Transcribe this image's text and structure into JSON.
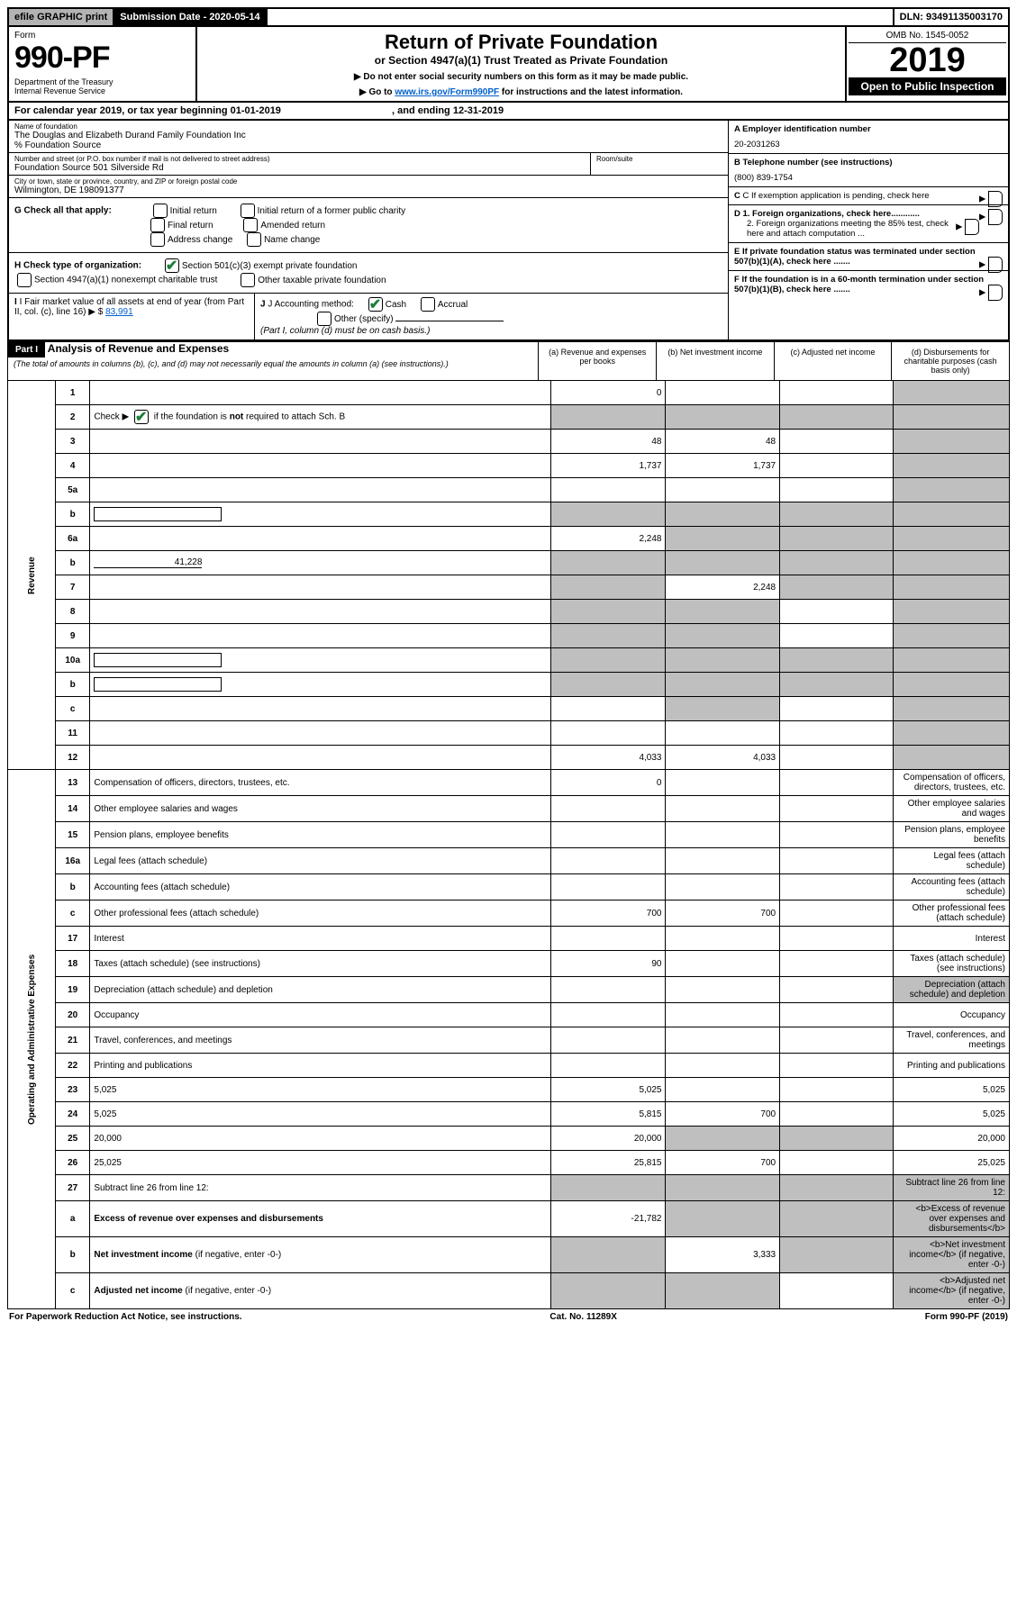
{
  "top": {
    "efile": "efile GRAPHIC print",
    "subdate_label": "Submission Date - 2020-05-14",
    "dln": "DLN: 93491135003170"
  },
  "header": {
    "form_word": "Form",
    "form_num": "990-PF",
    "dept": "Department of the Treasury\nInternal Revenue Service",
    "title": "Return of Private Foundation",
    "subtitle": "or Section 4947(a)(1) Trust Treated as Private Foundation",
    "instr1": "▶ Do not enter social security numbers on this form as it may be made public.",
    "instr2_pre": "▶ Go to ",
    "instr2_link": "www.irs.gov/Form990PF",
    "instr2_post": " for instructions and the latest information.",
    "omb": "OMB No. 1545-0052",
    "year": "2019",
    "otp": "Open to Public Inspection"
  },
  "cal": {
    "text_pre": "For calendar year 2019, or tax year beginning ",
    "begin": "01-01-2019",
    "mid": " , and ending ",
    "end": "12-31-2019"
  },
  "info": {
    "name_lbl": "Name of foundation",
    "name": "The Douglas and Elizabeth Durand Family Foundation Inc\n% Foundation Source",
    "addr_lbl": "Number and street (or P.O. box number if mail is not delivered to street address)",
    "addr": "Foundation Source 501 Silverside Rd",
    "room_lbl": "Room/suite",
    "city_lbl": "City or town, state or province, country, and ZIP or foreign postal code",
    "city": "Wilmington, DE  198091377",
    "a_lbl": "A Employer identification number",
    "a_val": "20-2031263",
    "b_lbl": "B Telephone number (see instructions)",
    "b_val": "(800) 839-1754",
    "c_lbl": "C If exemption application is pending, check here",
    "d1": "D 1. Foreign organizations, check here............",
    "d2": "2. Foreign organizations meeting the 85% test, check here and attach computation ...",
    "e": "E  If private foundation status was terminated under section 507(b)(1)(A), check here .......",
    "f": "F  If the foundation is in a 60-month termination under section 507(b)(1)(B), check here .......",
    "g_lbl": "G Check all that apply:",
    "g_opts": [
      "Initial return",
      "Initial return of a former public charity",
      "Final return",
      "Amended return",
      "Address change",
      "Name change"
    ],
    "h_lbl": "H Check type of organization:",
    "h_opts": [
      "Section 501(c)(3) exempt private foundation",
      "Section 4947(a)(1) nonexempt charitable trust",
      "Other taxable private foundation"
    ],
    "i_lbl": "I Fair market value of all assets at end of year (from Part II, col. (c), line 16) ▶ $",
    "i_val": "83,991",
    "j_lbl": "J Accounting method:",
    "j_opts": [
      "Cash",
      "Accrual"
    ],
    "j_other": "Other (specify)",
    "j_note": "(Part I, column (d) must be on cash basis.)"
  },
  "part1": {
    "label": "Part I",
    "title": "Analysis of Revenue and Expenses",
    "note": "(The total of amounts in columns (b), (c), and (d) may not necessarily equal the amounts in column (a) (see instructions).)",
    "cols": {
      "a": "(a) Revenue and expenses per books",
      "b": "(b) Net investment income",
      "c": "(c) Adjusted net income",
      "d": "(d) Disbursements for charitable purposes (cash basis only)"
    }
  },
  "sections": {
    "revenue": "Revenue",
    "expenses": "Operating and Administrative Expenses"
  },
  "rows": [
    {
      "n": "1",
      "d": "",
      "a": "0",
      "b": "",
      "c": "",
      "dgrey": true
    },
    {
      "n": "2",
      "d": "",
      "hasCheck": true,
      "a": "",
      "b": "",
      "c": "",
      "allgrey": true
    },
    {
      "n": "3",
      "d": "",
      "a": "48",
      "b": "48",
      "c": "",
      "dgrey": true
    },
    {
      "n": "4",
      "d": "",
      "a": "1,737",
      "b": "1,737",
      "c": "",
      "dgrey": true
    },
    {
      "n": "5a",
      "d": "",
      "a": "",
      "b": "",
      "c": "",
      "dgrey": true
    },
    {
      "n": "b",
      "d": "",
      "a": "",
      "b": "",
      "c": "",
      "allgrey": true,
      "inline": true
    },
    {
      "n": "6a",
      "d": "",
      "a": "2,248",
      "b": "",
      "c": "",
      "bgrey": true,
      "cgrey": true,
      "dgrey": true
    },
    {
      "n": "b",
      "d": "",
      "extra": "41,228",
      "a": "",
      "b": "",
      "c": "",
      "allgrey": true
    },
    {
      "n": "7",
      "d": "",
      "a": "",
      "b": "2,248",
      "c": "",
      "agrey": true,
      "cgrey": true,
      "dgrey": true
    },
    {
      "n": "8",
      "d": "",
      "a": "",
      "b": "",
      "c": "",
      "agrey": true,
      "bgrey": true,
      "dgrey": true
    },
    {
      "n": "9",
      "d": "",
      "a": "",
      "b": "",
      "c": "",
      "agrey": true,
      "bgrey": true,
      "dgrey": true
    },
    {
      "n": "10a",
      "d": "",
      "a": "",
      "b": "",
      "c": "",
      "allgrey": true,
      "inline": true
    },
    {
      "n": "b",
      "d": "",
      "a": "",
      "b": "",
      "c": "",
      "allgrey": true,
      "inline": true
    },
    {
      "n": "c",
      "d": "",
      "a": "",
      "b": "",
      "c": "",
      "bgrey": true,
      "dgrey": true
    },
    {
      "n": "11",
      "d": "",
      "a": "",
      "b": "",
      "c": "",
      "dgrey": true
    },
    {
      "n": "12",
      "d": "",
      "a": "4,033",
      "b": "4,033",
      "c": "",
      "dgrey": true
    }
  ],
  "exp_rows": [
    {
      "n": "13",
      "d": "Compensation of officers, directors, trustees, etc.",
      "a": "0"
    },
    {
      "n": "14",
      "d": "Other employee salaries and wages"
    },
    {
      "n": "15",
      "d": "Pension plans, employee benefits"
    },
    {
      "n": "16a",
      "d": "Legal fees (attach schedule)"
    },
    {
      "n": "b",
      "d": "Accounting fees (attach schedule)"
    },
    {
      "n": "c",
      "d": "Other professional fees (attach schedule)",
      "a": "700",
      "b": "700"
    },
    {
      "n": "17",
      "d": "Interest"
    },
    {
      "n": "18",
      "d": "Taxes (attach schedule) (see instructions)",
      "a": "90"
    },
    {
      "n": "19",
      "d": "Depreciation (attach schedule) and depletion",
      "dgrey": true
    },
    {
      "n": "20",
      "d": "Occupancy"
    },
    {
      "n": "21",
      "d": "Travel, conferences, and meetings"
    },
    {
      "n": "22",
      "d": "Printing and publications"
    },
    {
      "n": "23",
      "d": "5,025",
      "a": "5,025"
    },
    {
      "n": "24",
      "d": "5,025",
      "a": "5,815",
      "b": "700"
    },
    {
      "n": "25",
      "d": "20,000",
      "a": "20,000",
      "bgrey": true,
      "cgrey": true
    },
    {
      "n": "26",
      "d": "25,025",
      "a": "25,815",
      "b": "700"
    },
    {
      "n": "27",
      "d": "Subtract line 26 from line 12:",
      "allgrey": true
    },
    {
      "n": "a",
      "d": "<b>Excess of revenue over expenses and disbursements</b>",
      "a": "-21,782",
      "bgrey": true,
      "cgrey": true,
      "dgrey": true
    },
    {
      "n": "b",
      "d": "<b>Net investment income</b> (if negative, enter -0-)",
      "b": "3,333",
      "agrey": true,
      "cgrey": true,
      "dgrey": true
    },
    {
      "n": "c",
      "d": "<b>Adjusted net income</b> (if negative, enter -0-)",
      "agrey": true,
      "bgrey": true,
      "dgrey": true
    }
  ],
  "footer": {
    "left": "For Paperwork Reduction Act Notice, see instructions.",
    "mid": "Cat. No. 11289X",
    "right": "Form 990-PF (2019)"
  }
}
